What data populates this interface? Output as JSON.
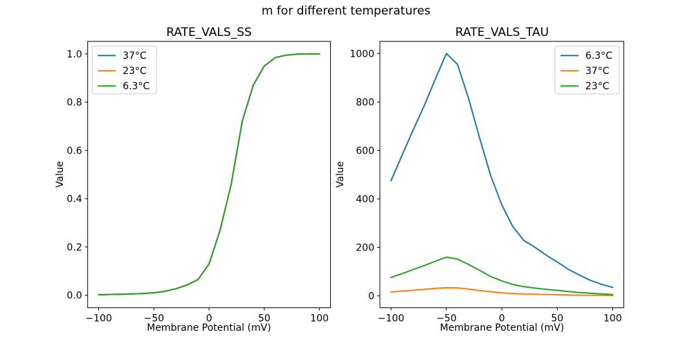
{
  "suptitle": "m for different temperatures",
  "colors": {
    "series_blue": "#1f77b4",
    "series_orange": "#ff7f0e",
    "series_green": "#2ca02c",
    "legend_border": "#cccccc",
    "axis": "#000000",
    "background": "#ffffff"
  },
  "chart_data": [
    {
      "type": "line",
      "title": "RATE_VALS_SS",
      "xlabel": "Membrane Potential (mV)",
      "ylabel": "Value",
      "xlim": [
        -110,
        110
      ],
      "ylim": [
        -0.052,
        1.052
      ],
      "grid": false,
      "legend_loc": "upper-left",
      "xticks": [
        -100,
        -50,
        0,
        50,
        100
      ],
      "xtick_labels": [
        "−100",
        "−50",
        "0",
        "50",
        "100"
      ],
      "yticks": [
        0.0,
        0.2,
        0.4,
        0.6,
        0.8,
        1.0
      ],
      "ytick_labels": [
        "0.0",
        "0.2",
        "0.4",
        "0.6",
        "0.8",
        "1.0"
      ],
      "x": [
        -100,
        -90,
        -80,
        -70,
        -60,
        -50,
        -40,
        -30,
        -20,
        -10,
        0,
        10,
        20,
        30,
        40,
        50,
        60,
        70,
        80,
        90,
        100
      ],
      "series": [
        {
          "name": "37°C",
          "color": "#1f77b4",
          "values": [
            0.002,
            0.003,
            0.004,
            0.005,
            0.007,
            0.01,
            0.016,
            0.027,
            0.042,
            0.065,
            0.13,
            0.27,
            0.46,
            0.72,
            0.87,
            0.95,
            0.985,
            0.995,
            0.999,
            1.0,
            1.0
          ]
        },
        {
          "name": "23°C",
          "color": "#ff7f0e",
          "values": [
            0.002,
            0.003,
            0.004,
            0.005,
            0.007,
            0.01,
            0.016,
            0.027,
            0.042,
            0.065,
            0.13,
            0.27,
            0.46,
            0.72,
            0.87,
            0.95,
            0.985,
            0.995,
            0.999,
            1.0,
            1.0
          ]
        },
        {
          "name": "6.3°C",
          "color": "#2ca02c",
          "values": [
            0.002,
            0.003,
            0.004,
            0.005,
            0.007,
            0.01,
            0.016,
            0.027,
            0.042,
            0.065,
            0.13,
            0.27,
            0.46,
            0.72,
            0.87,
            0.95,
            0.985,
            0.995,
            0.999,
            1.0,
            1.0
          ]
        }
      ]
    },
    {
      "type": "line",
      "title": "RATE_VALS_TAU",
      "xlabel": "Membrane Potential (mV)",
      "ylabel": "Value",
      "xlim": [
        -110,
        110
      ],
      "ylim": [
        -48.8,
        1049.9
      ],
      "grid": false,
      "legend_loc": "upper-right",
      "xticks": [
        -100,
        -50,
        0,
        50,
        100
      ],
      "xtick_labels": [
        "−100",
        "−50",
        "0",
        "50",
        "100"
      ],
      "yticks": [
        0,
        200,
        400,
        600,
        800,
        1000
      ],
      "ytick_labels": [
        "0",
        "200",
        "400",
        "600",
        "800",
        "1000"
      ],
      "x": [
        -100,
        -90,
        -80,
        -70,
        -60,
        -50,
        -40,
        -30,
        -20,
        -10,
        0,
        10,
        20,
        30,
        40,
        50,
        60,
        70,
        80,
        90,
        100
      ],
      "series": [
        {
          "name": "6.3°C",
          "color": "#1f77b4",
          "values": [
            475,
            580,
            685,
            785,
            895,
            1000,
            955,
            815,
            650,
            495,
            375,
            285,
            228,
            200,
            168,
            140,
            110,
            86,
            64,
            48,
            35
          ]
        },
        {
          "name": "37°C",
          "color": "#ff7f0e",
          "values": [
            16,
            20,
            23,
            27,
            31,
            34,
            33,
            28,
            22,
            17,
            13,
            10,
            8,
            7,
            6,
            5,
            4,
            3,
            2.5,
            2,
            1.5
          ]
        },
        {
          "name": "23°C",
          "color": "#2ca02c",
          "values": [
            76,
            92,
            109,
            125,
            143,
            160,
            152,
            130,
            105,
            80,
            62,
            47,
            38,
            32,
            27,
            23,
            18,
            14,
            11,
            8,
            6
          ]
        }
      ]
    }
  ]
}
